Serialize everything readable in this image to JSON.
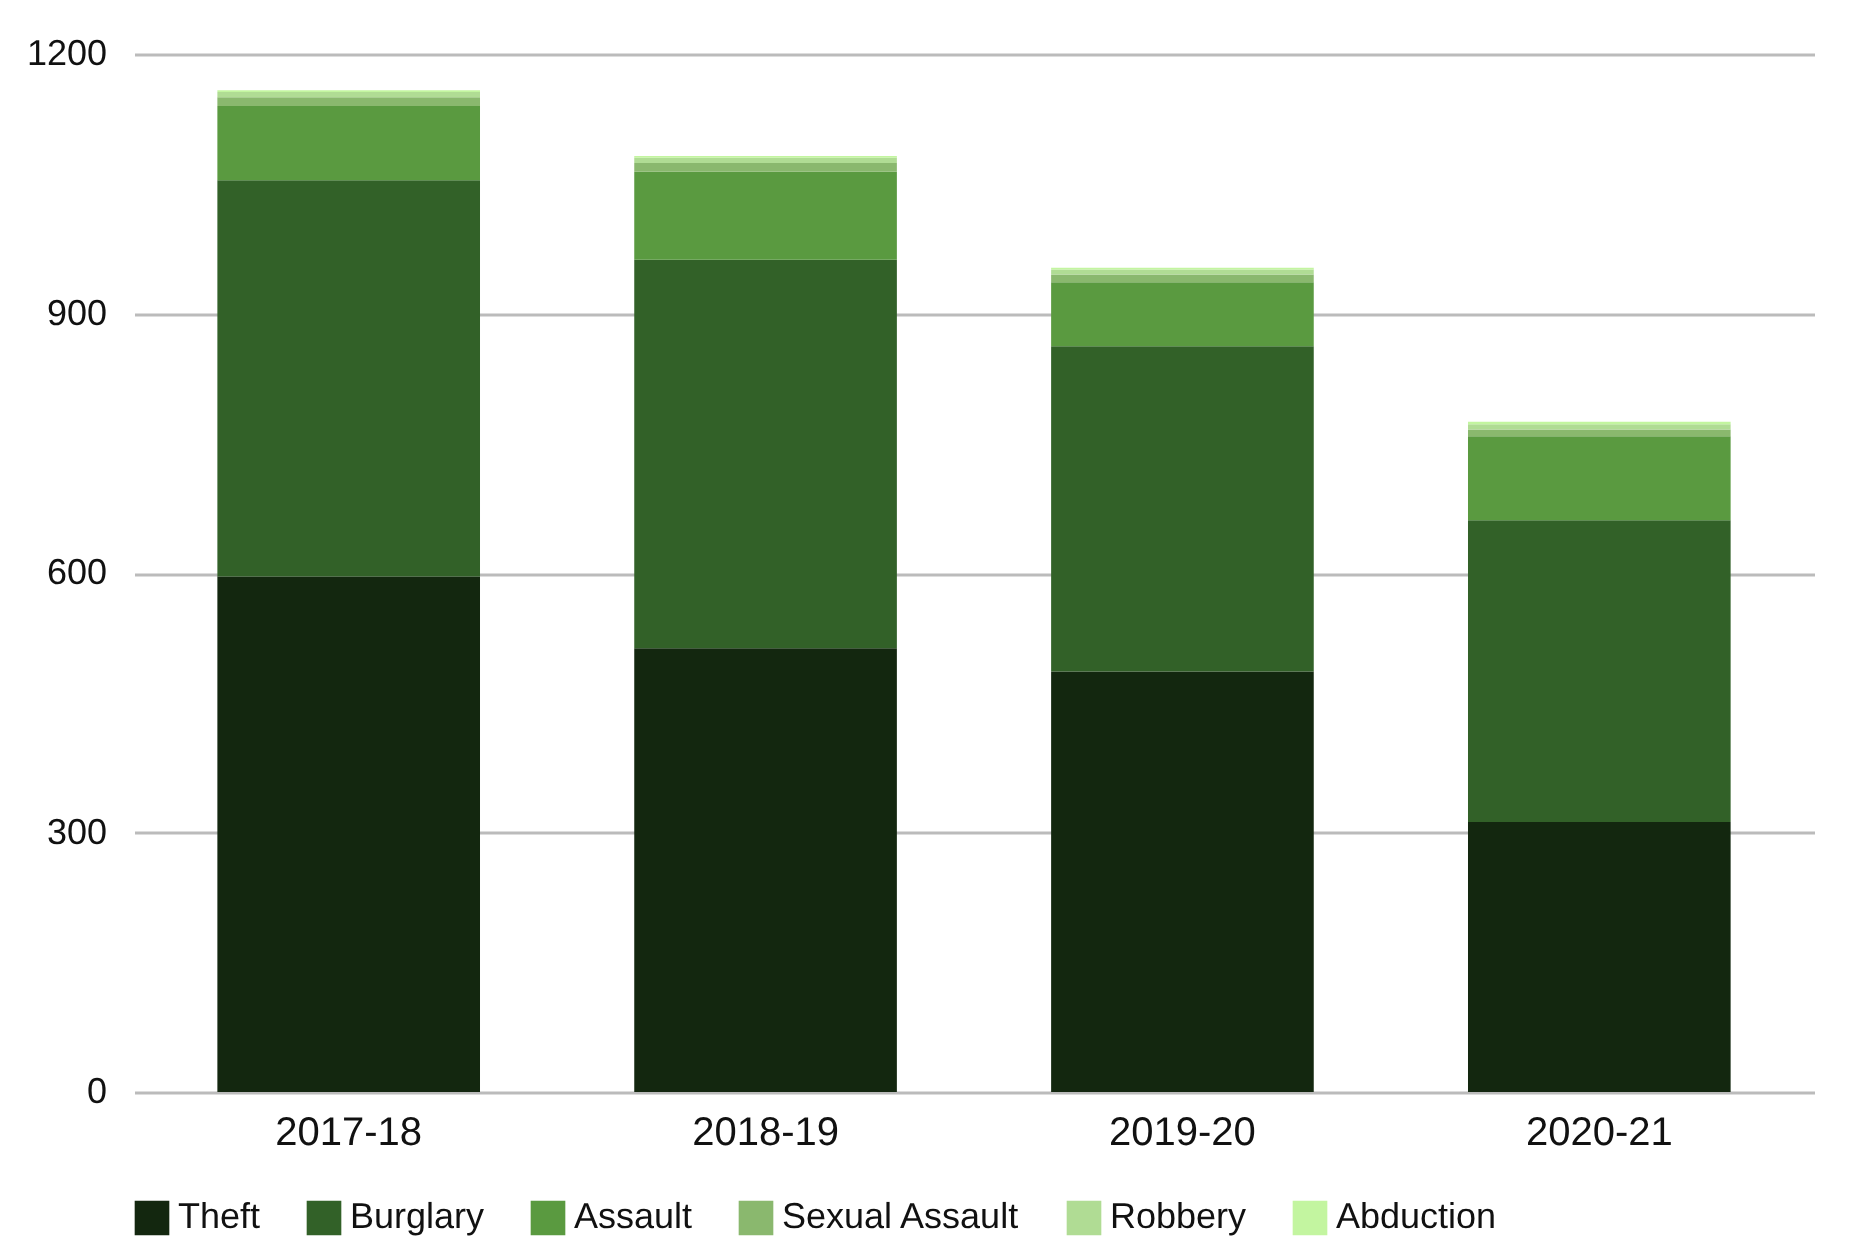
{
  "chart_data": {
    "type": "bar",
    "stacked": true,
    "categories": [
      "2017-18",
      "2018-19",
      "2019-20",
      "2020-21"
    ],
    "series": [
      {
        "name": "Theft",
        "color": "#13270f",
        "values": [
          596,
          513,
          486,
          312
        ]
      },
      {
        "name": "Burglary",
        "color": "#326128",
        "values": [
          458,
          449,
          376,
          349
        ]
      },
      {
        "name": "Assault",
        "color": "#5a9a40",
        "values": [
          86,
          102,
          74,
          97
        ]
      },
      {
        "name": "Sexual Assault",
        "color": "#8ab86e",
        "values": [
          10,
          10,
          9,
          8
        ]
      },
      {
        "name": "Robbery",
        "color": "#b0dc94",
        "values": [
          6,
          6,
          6,
          6
        ]
      },
      {
        "name": "Abduction",
        "color": "#c3f5a0",
        "values": [
          2,
          2,
          2,
          3
        ]
      }
    ],
    "ylim": [
      0,
      1200
    ],
    "yticks": [
      0,
      300,
      600,
      900,
      1200
    ],
    "grid": "y",
    "legend": "bottom"
  }
}
